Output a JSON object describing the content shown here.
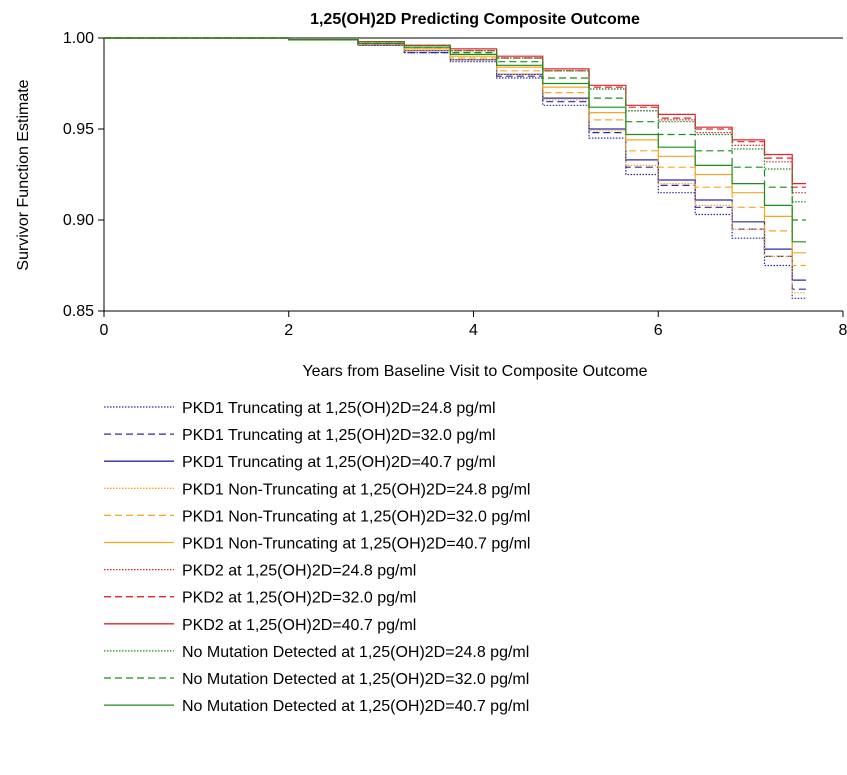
{
  "chart_data": {
    "type": "line",
    "title": "1,25(OH)2D Predicting Composite Outcome",
    "xlabel": "Years from Baseline Visit to Composite Outcome",
    "ylabel": "Survivor Function Estimate",
    "xlim": [
      0,
      8
    ],
    "ylim": [
      0.85,
      1.0
    ],
    "x_ticks": [
      {
        "value": 0,
        "label": "0"
      },
      {
        "value": 2,
        "label": "2"
      },
      {
        "value": 4,
        "label": "4"
      },
      {
        "value": 6,
        "label": "6"
      },
      {
        "value": 8,
        "label": "8"
      }
    ],
    "y_ticks": [
      {
        "value": 0.85,
        "label": "0.85"
      },
      {
        "value": 0.9,
        "label": "0.90"
      },
      {
        "value": 0.95,
        "label": "0.95"
      },
      {
        "value": 1.0,
        "label": "1.00"
      }
    ],
    "grid": false,
    "legend_position": "bottom",
    "x": [
      0,
      1.5,
      2.5,
      3.0,
      3.5,
      4.0,
      4.5,
      5.0,
      5.5,
      5.8,
      6.2,
      6.6,
      7.0,
      7.3,
      7.6
    ],
    "series": [
      {
        "name": "PKD1 Truncating at 1,25(OH)2D=24.8 pg/ml",
        "color": "#2a2aa8",
        "style": "dotted",
        "values": [
          1.0,
          1.0,
          0.999,
          0.996,
          0.992,
          0.987,
          0.978,
          0.963,
          0.945,
          0.925,
          0.915,
          0.903,
          0.89,
          0.875,
          0.857
        ]
      },
      {
        "name": "PKD1 Truncating at 1,25(OH)2D=32.0 pg/ml",
        "color": "#2a2aa8",
        "style": "dashed",
        "values": [
          1.0,
          1.0,
          0.999,
          0.996,
          0.992,
          0.988,
          0.979,
          0.965,
          0.948,
          0.929,
          0.919,
          0.907,
          0.895,
          0.88,
          0.862
        ]
      },
      {
        "name": "PKD1 Truncating at 1,25(OH)2D=40.7 pg/ml",
        "color": "#2a2aa8",
        "style": "solid",
        "values": [
          1.0,
          1.0,
          0.999,
          0.996,
          0.993,
          0.988,
          0.98,
          0.967,
          0.95,
          0.933,
          0.922,
          0.911,
          0.899,
          0.884,
          0.867
        ]
      },
      {
        "name": "PKD1 Non-Truncating at 1,25(OH)2D=24.8 pg/ml",
        "color": "#f5a623",
        "style": "dotted",
        "values": [
          1.0,
          1.0,
          0.999,
          0.996,
          0.993,
          0.988,
          0.98,
          0.966,
          0.949,
          0.93,
          0.92,
          0.908,
          0.895,
          0.88,
          0.86
        ]
      },
      {
        "name": "PKD1 Non-Truncating at 1,25(OH)2D=32.0 pg/ml",
        "color": "#f5a623",
        "style": "dashed",
        "values": [
          1.0,
          1.0,
          0.999,
          0.997,
          0.994,
          0.989,
          0.982,
          0.97,
          0.955,
          0.938,
          0.929,
          0.918,
          0.907,
          0.894,
          0.875
        ]
      },
      {
        "name": "PKD1 Non-Truncating at 1,25(OH)2D=40.7 pg/ml",
        "color": "#f5a623",
        "style": "solid",
        "values": [
          1.0,
          1.0,
          0.999,
          0.997,
          0.994,
          0.99,
          0.984,
          0.973,
          0.959,
          0.944,
          0.935,
          0.925,
          0.915,
          0.902,
          0.882
        ]
      },
      {
        "name": "PKD2 at 1,25(OH)2D=24.8 pg/ml",
        "color": "#e0262b",
        "style": "dotted",
        "values": [
          1.0,
          1.0,
          0.999,
          0.998,
          0.996,
          0.993,
          0.989,
          0.982,
          0.972,
          0.96,
          0.955,
          0.948,
          0.941,
          0.932,
          0.915
        ]
      },
      {
        "name": "PKD2 at 1,25(OH)2D=32.0 pg/ml",
        "color": "#e0262b",
        "style": "dashed",
        "values": [
          1.0,
          1.0,
          0.999,
          0.998,
          0.996,
          0.993,
          0.989,
          0.982,
          0.973,
          0.962,
          0.956,
          0.95,
          0.943,
          0.934,
          0.918
        ]
      },
      {
        "name": "PKD2 at 1,25(OH)2D=40.7 pg/ml",
        "color": "#e0262b",
        "style": "solid",
        "values": [
          1.0,
          1.0,
          0.999,
          0.998,
          0.996,
          0.994,
          0.99,
          0.983,
          0.974,
          0.963,
          0.958,
          0.951,
          0.944,
          0.936,
          0.92
        ]
      },
      {
        "name": "No Mutation Detected at 1,25(OH)2D=24.8 pg/ml",
        "color": "#1e8c1e",
        "style": "dotted",
        "values": [
          1.0,
          1.0,
          0.999,
          0.998,
          0.996,
          0.993,
          0.989,
          0.982,
          0.972,
          0.96,
          0.954,
          0.947,
          0.939,
          0.928,
          0.91
        ]
      },
      {
        "name": "No Mutation Detected at 1,25(OH)2D=32.0 pg/ml",
        "color": "#1e8c1e",
        "style": "dashed",
        "values": [
          1.0,
          1.0,
          0.999,
          0.997,
          0.995,
          0.992,
          0.987,
          0.978,
          0.967,
          0.954,
          0.947,
          0.938,
          0.929,
          0.918,
          0.9
        ]
      },
      {
        "name": "No Mutation Detected at 1,25(OH)2D=40.7 pg/ml",
        "color": "#1e8c1e",
        "style": "solid",
        "values": [
          1.0,
          1.0,
          0.999,
          0.997,
          0.995,
          0.991,
          0.985,
          0.975,
          0.962,
          0.947,
          0.94,
          0.93,
          0.92,
          0.908,
          0.888
        ]
      }
    ]
  }
}
